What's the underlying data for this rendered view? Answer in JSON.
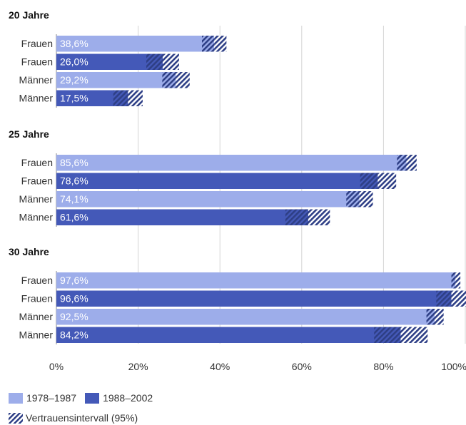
{
  "chart_data": {
    "type": "bar",
    "orientation": "horizontal",
    "xlim": [
      0,
      100
    ],
    "x_ticks": [
      "0%",
      "20%",
      "40%",
      "60%",
      "80%",
      "100%"
    ],
    "groups": [
      {
        "title": "20 Jahre",
        "bars": [
          {
            "label": "Frauen",
            "period": "1978–1987",
            "value": 38.6,
            "value_label": "38,6%",
            "ci": [
              35.6,
              41.6
            ]
          },
          {
            "label": "Frauen",
            "period": "1988–2002",
            "value": 26.0,
            "value_label": "26,0%",
            "ci": [
              22.0,
              30.0
            ]
          },
          {
            "label": "Männer",
            "period": "1978–1987",
            "value": 29.2,
            "value_label": "29,2%",
            "ci": [
              25.9,
              32.6
            ]
          },
          {
            "label": "Männer",
            "period": "1988–2002",
            "value": 17.5,
            "value_label": "17,5%",
            "ci": [
              13.9,
              21.1
            ]
          }
        ]
      },
      {
        "title": "25 Jahre",
        "bars": [
          {
            "label": "Frauen",
            "period": "1978–1987",
            "value": 85.6,
            "value_label": "85,6%",
            "ci": [
              83.3,
              88.1
            ]
          },
          {
            "label": "Frauen",
            "period": "1988–2002",
            "value": 78.6,
            "value_label": "78,6%",
            "ci": [
              74.3,
              83.1
            ]
          },
          {
            "label": "Männer",
            "period": "1978–1987",
            "value": 74.1,
            "value_label": "74,1%",
            "ci": [
              70.9,
              77.4
            ]
          },
          {
            "label": "Männer",
            "period": "1988–2002",
            "value": 61.6,
            "value_label": "61,6%",
            "ci": [
              56.0,
              66.9
            ]
          }
        ]
      },
      {
        "title": "30 Jahre",
        "bars": [
          {
            "label": "Frauen",
            "period": "1978–1987",
            "value": 97.6,
            "value_label": "97,6%",
            "ci": [
              96.6,
              98.8
            ]
          },
          {
            "label": "Frauen",
            "period": "1988–2002",
            "value": 96.6,
            "value_label": "96,6%",
            "ci": [
              92.9,
              100.8
            ]
          },
          {
            "label": "Männer",
            "period": "1978–1987",
            "value": 92.5,
            "value_label": "92,5%",
            "ci": [
              90.5,
              94.7
            ]
          },
          {
            "label": "Männer",
            "period": "1988–2002",
            "value": 84.2,
            "value_label": "84,2%",
            "ci": [
              77.7,
              90.8
            ]
          }
        ]
      }
    ],
    "legend": {
      "placement": "bottom-left",
      "series": [
        {
          "name": "1978–1987",
          "color": "#9dadea"
        },
        {
          "name": "1988–2002",
          "color": "#4459b8"
        }
      ],
      "ci_label": "Vertrauensintervall (95%)"
    },
    "grid": true
  },
  "colors": {
    "period_1": "#9dadea",
    "period_2": "#4459b8",
    "hatch": "#2e3f86",
    "grid": "#d4d4d4"
  }
}
